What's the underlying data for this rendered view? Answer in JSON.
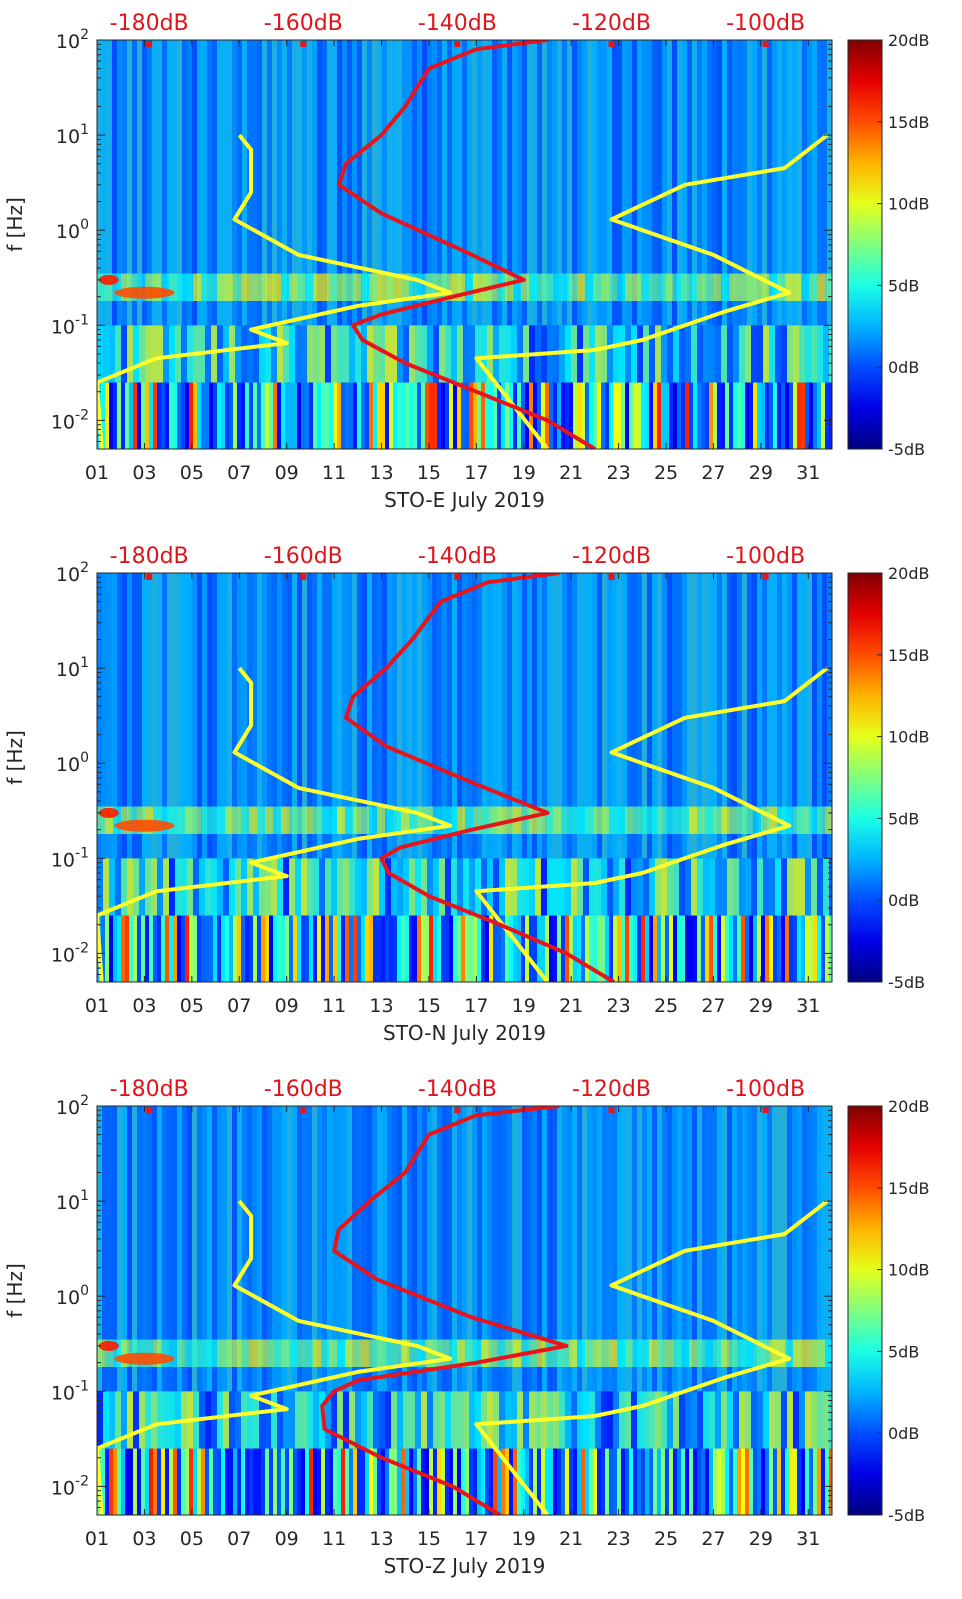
{
  "chart_data": [
    {
      "type": "heatmap",
      "title": "STO-E July 2019",
      "xlabel": "STO-E July 2019",
      "ylabel": "f [Hz]",
      "x_ticks": [
        "01",
        "03",
        "05",
        "07",
        "09",
        "11",
        "13",
        "15",
        "17",
        "19",
        "21",
        "23",
        "25",
        "27",
        "29",
        "31"
      ],
      "xlim_days": [
        1,
        32
      ],
      "ylim_hz": [
        0.005,
        100
      ],
      "y_ticks": [
        {
          "base": "10",
          "exp": "2"
        },
        {
          "base": "10",
          "exp": "1"
        },
        {
          "base": "10",
          "exp": "0"
        },
        {
          "base": "10",
          "exp": "-1"
        },
        {
          "base": "10",
          "exp": "-2"
        }
      ],
      "y_tick_values": [
        100,
        10,
        1,
        0.1,
        0.01
      ],
      "top_axis_labels": [
        "-180dB",
        "-160dB",
        "-140dB",
        "-120dB",
        "-100dB"
      ],
      "top_axis_values_db": [
        -180,
        -160,
        -140,
        -120,
        -100
      ],
      "top_axis_positions_day": [
        3.2,
        9.7,
        16.2,
        22.7,
        29.2
      ],
      "colorbar": {
        "labels": [
          "20dB",
          "15dB",
          "10dB",
          "5dB",
          "0dB",
          "-5dB"
        ],
        "range_db": [
          -5,
          20
        ]
      },
      "series": [
        {
          "name": "NHNM / NLNM model curve (yellow)",
          "color": "#ffff2a",
          "points_day_hz": [
            [
              7.0,
              10
            ],
            [
              7.5,
              7
            ],
            [
              7.5,
              2.5
            ],
            [
              6.8,
              1.3
            ],
            [
              9.5,
              0.55
            ],
            [
              14.5,
              0.3
            ],
            [
              15.9,
              0.22
            ],
            [
              12.0,
              0.16
            ],
            [
              7.5,
              0.09
            ],
            [
              9.0,
              0.065
            ],
            [
              3.5,
              0.045
            ],
            [
              1.0,
              0.025
            ],
            [
              1.2,
              0.005
            ]
          ]
        },
        {
          "name": "NHNM / NLNM model curve (yellow, right)",
          "color": "#ffff2a",
          "points_day_hz": [
            [
              31.8,
              10
            ],
            [
              30.0,
              4.5
            ],
            [
              25.8,
              3.0
            ],
            [
              22.7,
              1.3
            ],
            [
              27.0,
              0.55
            ],
            [
              30.2,
              0.22
            ],
            [
              27.5,
              0.14
            ],
            [
              24.0,
              0.07
            ],
            [
              22.0,
              0.055
            ],
            [
              17.0,
              0.045
            ],
            [
              20.0,
              0.005
            ]
          ]
        },
        {
          "name": "Median PSD (red)",
          "color": "#e8141b",
          "points_day_hz": [
            [
              20.0,
              100
            ],
            [
              17.0,
              80
            ],
            [
              15.0,
              50
            ],
            [
              14.0,
              20
            ],
            [
              13.0,
              10
            ],
            [
              11.5,
              5
            ],
            [
              11.2,
              3
            ],
            [
              13.0,
              1.5
            ],
            [
              16.5,
              0.6
            ],
            [
              19.0,
              0.3
            ],
            [
              16.0,
              0.2
            ],
            [
              13.0,
              0.13
            ],
            [
              11.8,
              0.1
            ],
            [
              12.2,
              0.07
            ],
            [
              14.0,
              0.04
            ],
            [
              17.0,
              0.02
            ],
            [
              20.0,
              0.01
            ],
            [
              22.0,
              0.005
            ]
          ]
        }
      ]
    },
    {
      "type": "heatmap",
      "title": "STO-N July 2019",
      "xlabel": "STO-N July 2019",
      "ylabel": "f [Hz]",
      "x_ticks": [
        "01",
        "03",
        "05",
        "07",
        "09",
        "11",
        "13",
        "15",
        "17",
        "19",
        "21",
        "23",
        "25",
        "27",
        "29",
        "31"
      ],
      "xlim_days": [
        1,
        32
      ],
      "ylim_hz": [
        0.005,
        100
      ],
      "y_ticks": [
        {
          "base": "10",
          "exp": "2"
        },
        {
          "base": "10",
          "exp": "1"
        },
        {
          "base": "10",
          "exp": "0"
        },
        {
          "base": "10",
          "exp": "-1"
        },
        {
          "base": "10",
          "exp": "-2"
        }
      ],
      "y_tick_values": [
        100,
        10,
        1,
        0.1,
        0.01
      ],
      "top_axis_labels": [
        "-180dB",
        "-160dB",
        "-140dB",
        "-120dB",
        "-100dB"
      ],
      "top_axis_values_db": [
        -180,
        -160,
        -140,
        -120,
        -100
      ],
      "top_axis_positions_day": [
        3.2,
        9.7,
        16.2,
        22.7,
        29.2
      ],
      "colorbar": {
        "labels": [
          "20dB",
          "15dB",
          "10dB",
          "5dB",
          "0dB",
          "-5dB"
        ],
        "range_db": [
          -5,
          20
        ]
      },
      "series": [
        {
          "name": "NHNM / NLNM model curve (yellow)",
          "color": "#ffff2a",
          "points_day_hz": [
            [
              7.0,
              10
            ],
            [
              7.5,
              7
            ],
            [
              7.5,
              2.5
            ],
            [
              6.8,
              1.3
            ],
            [
              9.5,
              0.55
            ],
            [
              14.5,
              0.3
            ],
            [
              15.9,
              0.22
            ],
            [
              12.0,
              0.16
            ],
            [
              7.5,
              0.09
            ],
            [
              9.0,
              0.065
            ],
            [
              3.5,
              0.045
            ],
            [
              1.0,
              0.025
            ],
            [
              1.2,
              0.005
            ]
          ]
        },
        {
          "name": "NHNM / NLNM model curve (yellow, right)",
          "color": "#ffff2a",
          "points_day_hz": [
            [
              31.8,
              10
            ],
            [
              30.0,
              4.5
            ],
            [
              25.8,
              3.0
            ],
            [
              22.7,
              1.3
            ],
            [
              27.0,
              0.55
            ],
            [
              30.2,
              0.22
            ],
            [
              27.5,
              0.14
            ],
            [
              24.0,
              0.07
            ],
            [
              22.0,
              0.055
            ],
            [
              17.0,
              0.045
            ],
            [
              20.0,
              0.005
            ]
          ]
        },
        {
          "name": "Median PSD (red)",
          "color": "#e8141b",
          "points_day_hz": [
            [
              20.5,
              100
            ],
            [
              17.5,
              80
            ],
            [
              15.5,
              50
            ],
            [
              14.3,
              20
            ],
            [
              13.2,
              10
            ],
            [
              11.8,
              5
            ],
            [
              11.5,
              3
            ],
            [
              13.2,
              1.5
            ],
            [
              17.0,
              0.6
            ],
            [
              20.0,
              0.3
            ],
            [
              16.8,
              0.2
            ],
            [
              13.8,
              0.13
            ],
            [
              13.0,
              0.1
            ],
            [
              13.3,
              0.07
            ],
            [
              15.0,
              0.04
            ],
            [
              18.0,
              0.02
            ],
            [
              20.8,
              0.01
            ],
            [
              22.8,
              0.005
            ]
          ]
        }
      ]
    },
    {
      "type": "heatmap",
      "title": "STO-Z July 2019",
      "xlabel": "STO-Z July 2019",
      "ylabel": "f [Hz]",
      "x_ticks": [
        "01",
        "03",
        "05",
        "07",
        "09",
        "11",
        "13",
        "15",
        "17",
        "19",
        "21",
        "23",
        "25",
        "27",
        "29",
        "31"
      ],
      "xlim_days": [
        1,
        32
      ],
      "ylim_hz": [
        0.005,
        100
      ],
      "y_ticks": [
        {
          "base": "10",
          "exp": "2"
        },
        {
          "base": "10",
          "exp": "1"
        },
        {
          "base": "10",
          "exp": "0"
        },
        {
          "base": "10",
          "exp": "-1"
        },
        {
          "base": "10",
          "exp": "-2"
        }
      ],
      "y_tick_values": [
        100,
        10,
        1,
        0.1,
        0.01
      ],
      "top_axis_labels": [
        "-180dB",
        "-160dB",
        "-140dB",
        "-120dB",
        "-100dB"
      ],
      "top_axis_values_db": [
        -180,
        -160,
        -140,
        -120,
        -100
      ],
      "top_axis_positions_day": [
        3.2,
        9.7,
        16.2,
        22.7,
        29.2
      ],
      "colorbar": {
        "labels": [
          "20dB",
          "15dB",
          "10dB",
          "5dB",
          "0dB",
          "-5dB"
        ],
        "range_db": [
          -5,
          20
        ]
      },
      "series": [
        {
          "name": "NHNM / NLNM model curve (yellow)",
          "color": "#ffff2a",
          "points_day_hz": [
            [
              7.0,
              10
            ],
            [
              7.5,
              7
            ],
            [
              7.5,
              2.5
            ],
            [
              6.8,
              1.3
            ],
            [
              9.5,
              0.55
            ],
            [
              14.5,
              0.3
            ],
            [
              15.9,
              0.22
            ],
            [
              12.0,
              0.16
            ],
            [
              7.5,
              0.09
            ],
            [
              9.0,
              0.065
            ],
            [
              3.5,
              0.045
            ],
            [
              1.0,
              0.025
            ],
            [
              1.2,
              0.005
            ]
          ]
        },
        {
          "name": "NHNM / NLNM model curve (yellow, right)",
          "color": "#ffff2a",
          "points_day_hz": [
            [
              31.8,
              10
            ],
            [
              30.0,
              4.5
            ],
            [
              25.8,
              3.0
            ],
            [
              22.7,
              1.3
            ],
            [
              27.0,
              0.55
            ],
            [
              30.2,
              0.22
            ],
            [
              27.5,
              0.14
            ],
            [
              24.0,
              0.07
            ],
            [
              22.0,
              0.055
            ],
            [
              17.0,
              0.045
            ],
            [
              20.0,
              0.005
            ]
          ]
        },
        {
          "name": "Median PSD (red)",
          "color": "#e8141b",
          "points_day_hz": [
            [
              20.5,
              100
            ],
            [
              17.0,
              80
            ],
            [
              15.0,
              50
            ],
            [
              14.0,
              20
            ],
            [
              12.5,
              10
            ],
            [
              11.2,
              5
            ],
            [
              11.0,
              3
            ],
            [
              12.8,
              1.5
            ],
            [
              16.8,
              0.6
            ],
            [
              20.8,
              0.3
            ],
            [
              17.0,
              0.2
            ],
            [
              12.0,
              0.13
            ],
            [
              11.0,
              0.1
            ],
            [
              10.5,
              0.07
            ],
            [
              10.6,
              0.04
            ],
            [
              13.0,
              0.02
            ],
            [
              16.0,
              0.01
            ],
            [
              18.0,
              0.005
            ]
          ]
        }
      ]
    }
  ]
}
